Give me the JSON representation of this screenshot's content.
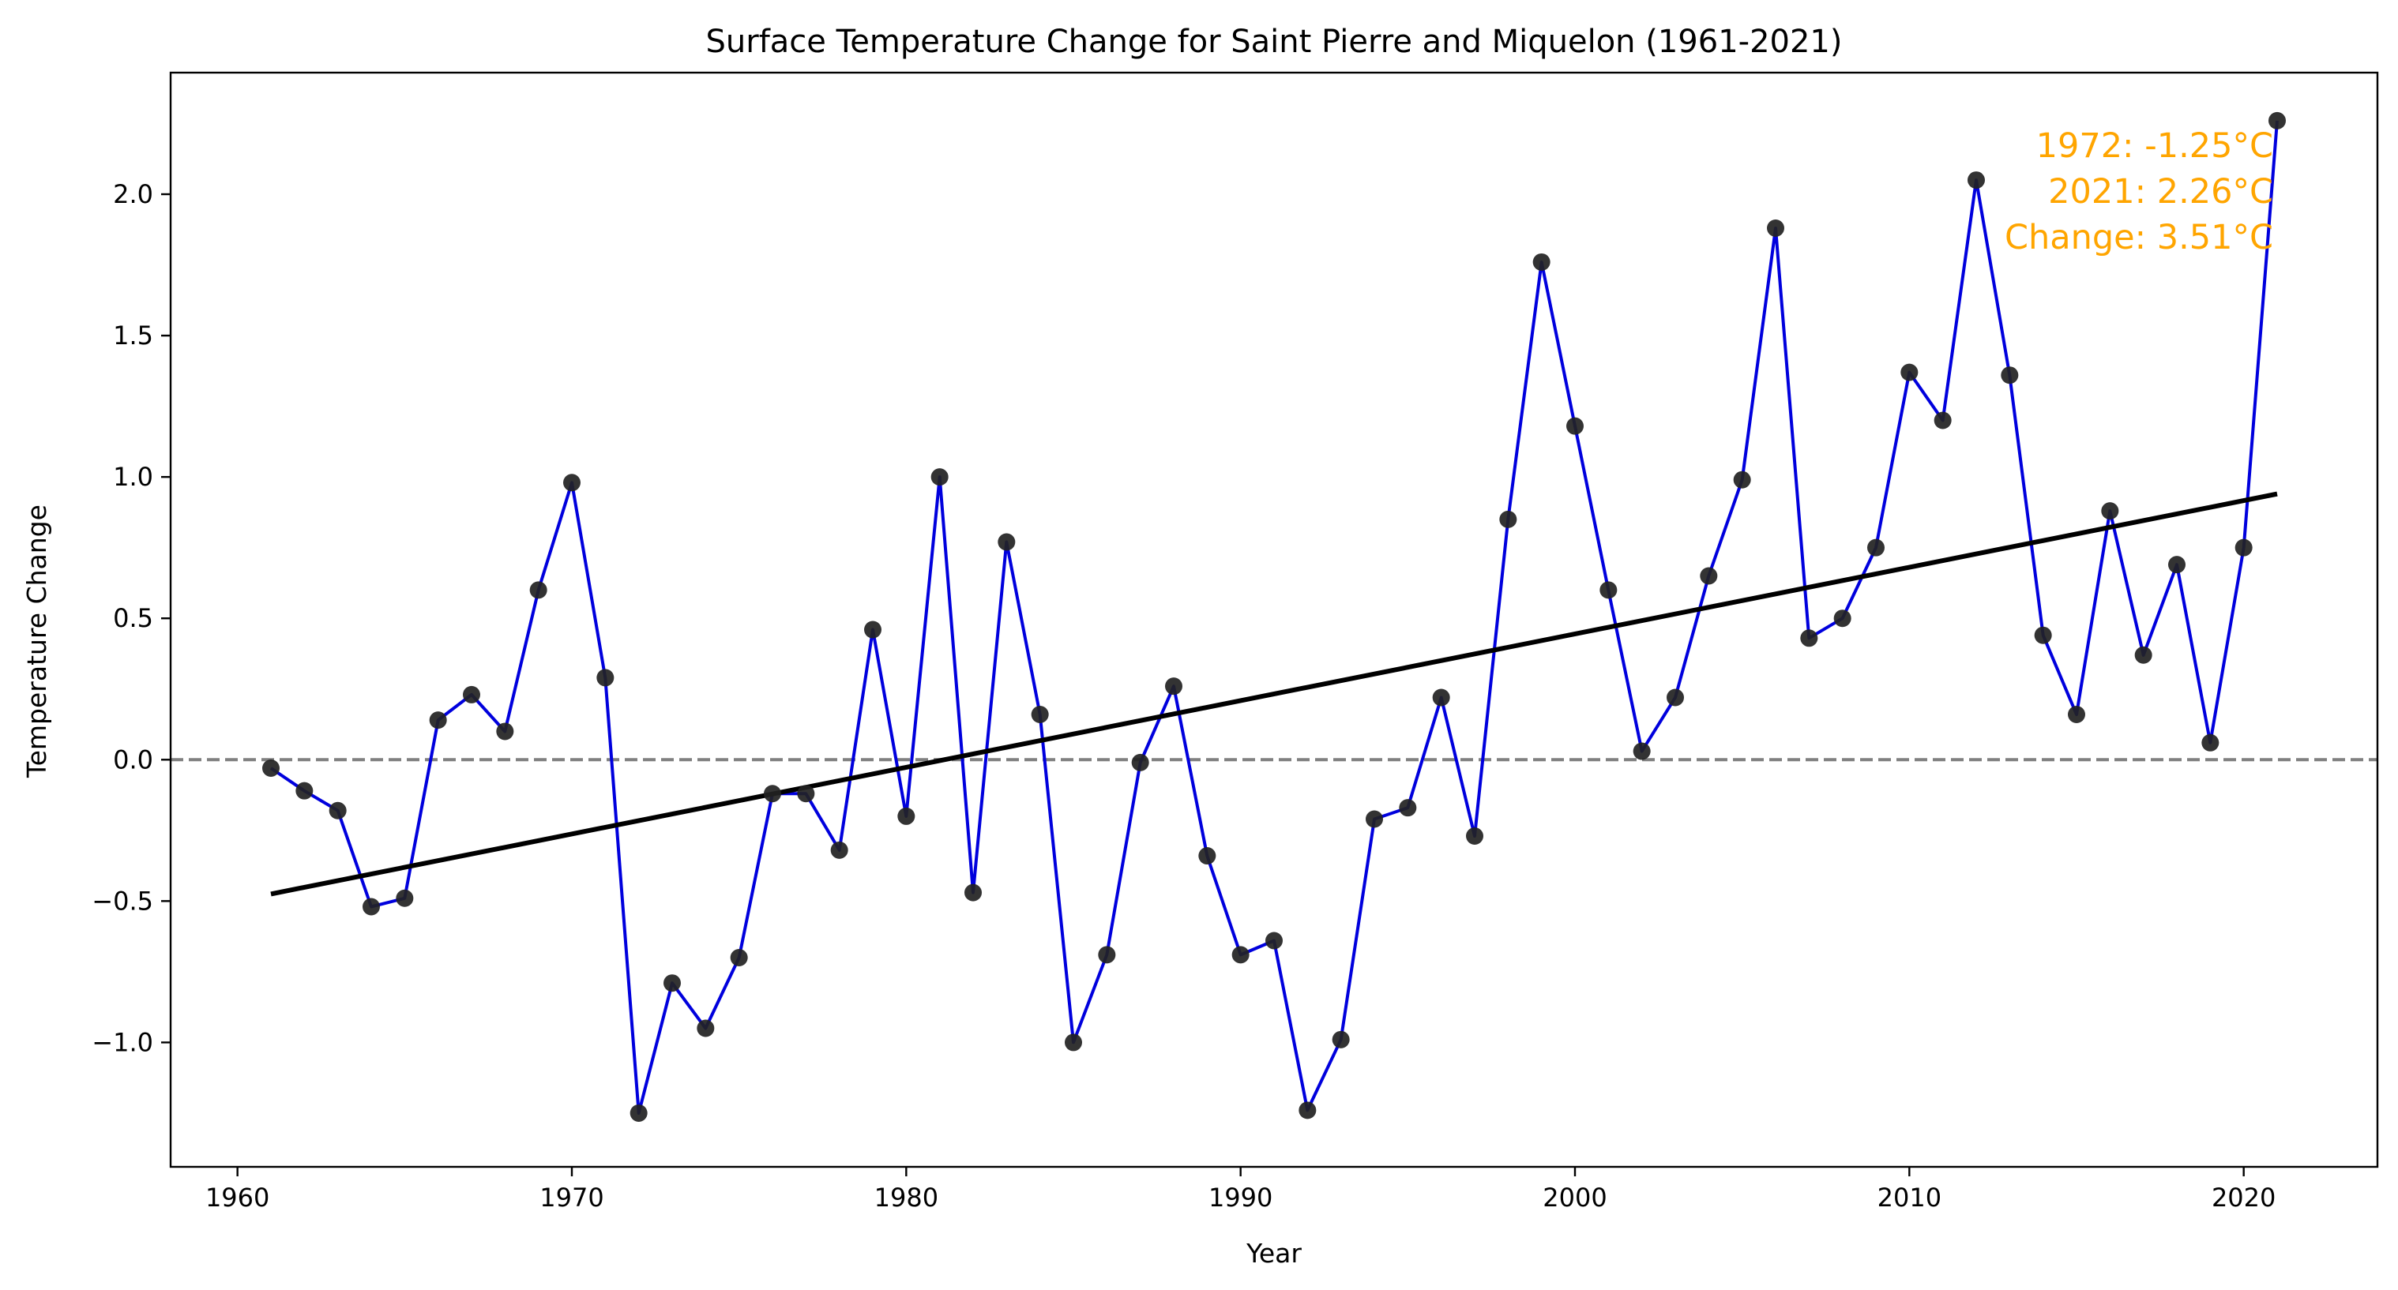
{
  "chart_data": {
    "type": "line",
    "title": "Surface Temperature Change for Saint Pierre and Miquelon (1961-2021)",
    "xlabel": "Year",
    "ylabel": "Temperature Change",
    "xlim": [
      1958.0,
      2024.0
    ],
    "ylim": [
      -1.44,
      2.43
    ],
    "x_ticks": [
      1960,
      1970,
      1980,
      1990,
      2000,
      2010,
      2020
    ],
    "y_ticks": [
      -1.0,
      -0.5,
      0.0,
      0.5,
      1.0,
      1.5,
      2.0
    ],
    "x_tick_labels": [
      "1960",
      "1970",
      "1980",
      "1990",
      "2000",
      "2010",
      "2020"
    ],
    "y_tick_labels": [
      "−1.0",
      "−0.5",
      "0.0",
      "0.5",
      "1.0",
      "1.5",
      "2.0"
    ],
    "grid": false,
    "colors": {
      "line": "#0000dd",
      "points": "#222222",
      "trend": "#000000",
      "zero_line": "#808080",
      "annotation": "#ffa500"
    },
    "series": [
      {
        "x": [
          1961,
          1962,
          1963,
          1964,
          1965,
          1966,
          1967,
          1968,
          1969,
          1970,
          1971,
          1972,
          1973,
          1974,
          1975,
          1976,
          1977,
          1978,
          1979,
          1980,
          1981,
          1982,
          1983,
          1984,
          1985,
          1986,
          1987,
          1988,
          1989,
          1990,
          1991,
          1992,
          1993,
          1994,
          1995,
          1996,
          1997,
          1998,
          1999,
          2000,
          2001,
          2002,
          2003,
          2004,
          2005,
          2006,
          2007,
          2008,
          2009,
          2010,
          2011,
          2012,
          2013,
          2014,
          2015,
          2016,
          2017,
          2018,
          2019,
          2020,
          2021
        ],
        "values": [
          -0.03,
          -0.11,
          -0.18,
          -0.52,
          -0.49,
          0.14,
          0.23,
          0.1,
          0.6,
          0.98,
          0.29,
          -1.25,
          -0.79,
          -0.95,
          -0.7,
          -0.12,
          -0.12,
          -0.32,
          0.46,
          -0.2,
          1.0,
          -0.47,
          0.77,
          0.16,
          -1.0,
          -0.69,
          -0.01,
          0.26,
          -0.34,
          -0.69,
          -0.64,
          -1.24,
          -0.99,
          -0.21,
          -0.17,
          0.22,
          -0.27,
          0.85,
          1.76,
          1.18,
          0.6,
          0.03,
          0.22,
          0.65,
          0.99,
          1.88,
          0.43,
          0.5,
          0.75,
          1.37,
          1.2,
          2.05,
          1.36,
          0.44,
          0.16,
          0.88,
          0.37,
          0.69,
          0.06,
          0.75,
          2.26
        ]
      }
    ],
    "trend_line": {
      "x": [
        1961,
        2021
      ],
      "y": [
        -0.475,
        0.94
      ]
    },
    "reference_line": {
      "y": 0.0,
      "style": "dashed"
    },
    "annotation": {
      "lines": [
        "1972: -1.25°C",
        "2021: 2.26°C",
        "Change: 3.51°C"
      ],
      "placement": "top-right"
    }
  }
}
